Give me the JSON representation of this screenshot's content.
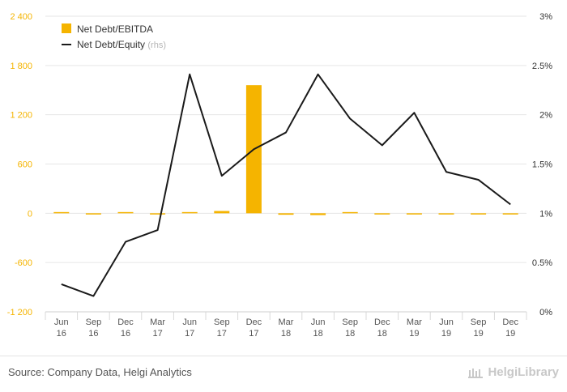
{
  "chart_data": {
    "type": "bar+line",
    "categories": [
      "Jun\n16",
      "Sep\n16",
      "Dec\n16",
      "Mar\n17",
      "Jun\n17",
      "Sep\n17",
      "Dec\n17",
      "Mar\n18",
      "Jun\n18",
      "Sep\n18",
      "Dec\n18",
      "Mar\n19",
      "Jun\n19",
      "Sep\n19",
      "Dec\n19"
    ],
    "series": [
      {
        "name": "Net Debt/EBITDA",
        "type": "bar",
        "axis": "left",
        "color": "#f5b400",
        "values": [
          0,
          -5,
          8,
          -4,
          10,
          28,
          1560,
          -18,
          -22,
          10,
          -5,
          -5,
          -5,
          -5,
          -5
        ]
      },
      {
        "name": "Net Debt/Equity",
        "name_suffix": "(rhs)",
        "type": "line",
        "axis": "right",
        "color": "#1a1a1a",
        "values": [
          0.28,
          0.16,
          0.71,
          0.83,
          2.41,
          1.38,
          1.65,
          1.82,
          2.41,
          1.96,
          1.69,
          2.02,
          1.42,
          1.34,
          1.09
        ]
      }
    ],
    "y_left": {
      "min": -1200,
      "max": 2400,
      "ticks": [
        -1200,
        -600,
        0,
        600,
        1200,
        1800,
        2400
      ],
      "tick_labels": [
        "-1 200",
        "-600",
        "0",
        "600",
        "1 200",
        "1 800",
        "2 400"
      ],
      "tick_color": "#f5b400"
    },
    "y_right": {
      "min": 0,
      "max": 3,
      "ticks": [
        0,
        0.5,
        1,
        1.5,
        2,
        2.5,
        3
      ],
      "tick_labels": [
        "0%",
        "0.5%",
        "1%",
        "1.5%",
        "2%",
        "2.5%",
        "3%"
      ]
    },
    "legend_position": "top-left",
    "grid": true
  },
  "footer": {
    "source": "Source: Company Data, Helgi Analytics",
    "brand": "HelgiLibrary"
  }
}
